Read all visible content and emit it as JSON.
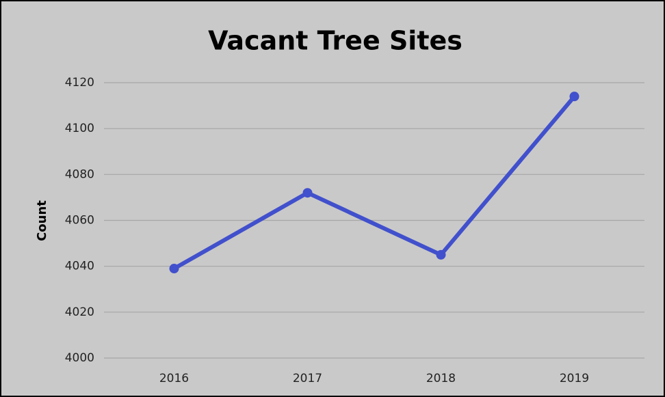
{
  "chart_data": {
    "type": "line",
    "title": "Vacant Tree Sites",
    "y_label": "Count",
    "categories": [
      "2016",
      "2017",
      "2018",
      "2019"
    ],
    "series": [
      {
        "name": "Count",
        "color": "#4150cc",
        "values": [
          4039,
          4072,
          4045,
          4114
        ]
      }
    ],
    "ylim": [
      4000,
      4120
    ],
    "yticks": [
      4000,
      4020,
      4040,
      4060,
      4080,
      4100,
      4120
    ],
    "grid": true
  }
}
